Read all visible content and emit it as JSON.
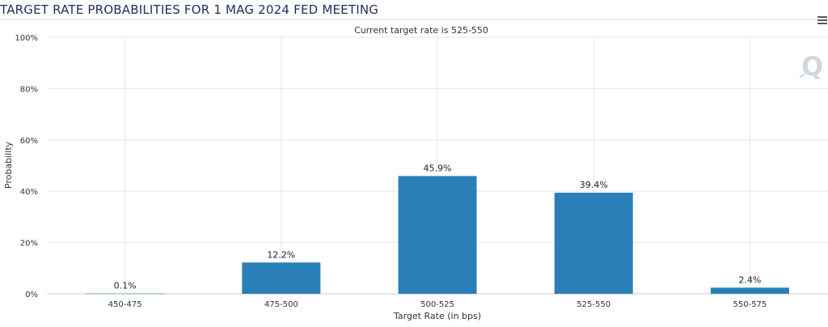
{
  "page_title": "TARGET RATE PROBABILITIES FOR 1 MAG 2024 FED MEETING",
  "menu_icon": "hamburger-menu-icon",
  "watermark_icon": "q-logo-icon",
  "colors": {
    "bar": "#2b7fb8",
    "grid": "#e6e6e6",
    "text": "#333333",
    "title": "#1f2d5c"
  },
  "chart_data": {
    "type": "bar",
    "title": "",
    "subtitle": "Current target rate is 525-550",
    "xlabel": "Target Rate (in bps)",
    "ylabel": "Probability",
    "categories": [
      "450-475",
      "475-500",
      "500-525",
      "525-550",
      "550-575"
    ],
    "values": [
      0.1,
      12.2,
      45.9,
      39.4,
      2.4
    ],
    "data_labels": [
      "0.1%",
      "12.2%",
      "45.9%",
      "39.4%",
      "2.4%"
    ],
    "ylim": [
      0,
      100
    ],
    "yticks": [
      "0%",
      "20%",
      "40%",
      "60%",
      "80%",
      "100%"
    ],
    "grid": true,
    "legend": "none"
  }
}
